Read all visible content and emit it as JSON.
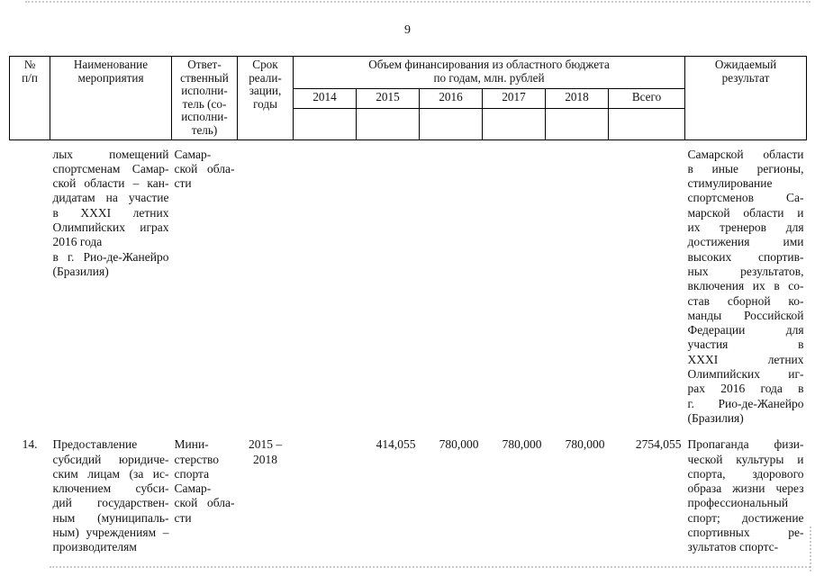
{
  "page_number": "9",
  "colors": {
    "background": "#ffffff",
    "text": "#141414",
    "border": "#000000"
  },
  "table": {
    "headers": {
      "num": [
        "№",
        "п/п"
      ],
      "name": [
        "Наименование",
        "мероприятия"
      ],
      "executor": [
        "Ответ-",
        "ственный",
        "исполни-",
        "тель (со-",
        "исполни-",
        "тель)"
      ],
      "term": [
        "Срок",
        "реали-",
        "зации,",
        "годы"
      ],
      "funding": [
        "Объем финансирования из областного бюджета",
        "по годам, млн. рублей"
      ],
      "years": [
        "2014",
        "2015",
        "2016",
        "2017",
        "2018",
        "Всего"
      ],
      "result": [
        "Ожидаемый",
        "результат"
      ]
    },
    "rows": [
      {
        "num": "",
        "name": [
          [
            "лых помещений",
            "спортсменам Самар-",
            "ской области – кан-",
            "дидатам на участие",
            "в XXXI летних",
            "Олимпийских играх",
            "2016 года"
          ],
          [
            "в г. Рио-де-Жанейро",
            "(Бразилия)"
          ]
        ],
        "executor": [
          [
            "Самар-",
            "ской обла-",
            "сти"
          ]
        ],
        "term": "",
        "values": [
          "",
          "",
          "",
          "",
          "",
          ""
        ],
        "result": [
          [
            "Самарской области",
            "в иные регионы,",
            "стимулирование",
            "спортсменов Са-",
            "марской области и",
            "их тренеров для",
            "достижения ими",
            "высоких спортив-",
            "ных результатов,",
            "включения их в со-",
            "став сборной ко-",
            "манды Российской",
            "Федерации для",
            "участия в",
            "XXXI летних",
            "Олимпийских иг-",
            "рах 2016 года в",
            "г. Рио-де-Жанейро",
            "(Бразилия)"
          ]
        ]
      },
      {
        "num": "14.",
        "name": [
          [
            "Предоставление",
            "субсидий юридиче-",
            "ским лицам (за ис-",
            "ключением субси-",
            "дий государствен-",
            "ным (муниципаль-",
            "ным) учреждениям –",
            "производителям"
          ]
        ],
        "executor": [
          [
            "Мини-",
            "стерство",
            "спорта",
            "Самар-",
            "ской обла-",
            "сти"
          ]
        ],
        "term": [
          "2015 –",
          "2018"
        ],
        "values": [
          "",
          "414,055",
          "780,000",
          "780,000",
          "780,000",
          "2754,055"
        ],
        "result": [
          [
            "Пропаганда физи-",
            "ческой культуры и",
            "спорта, здорового",
            "образа жизни через",
            "профессиональный",
            "спорт; достижение",
            "спортивных ре-",
            "зультатов спортс-"
          ]
        ]
      }
    ]
  }
}
